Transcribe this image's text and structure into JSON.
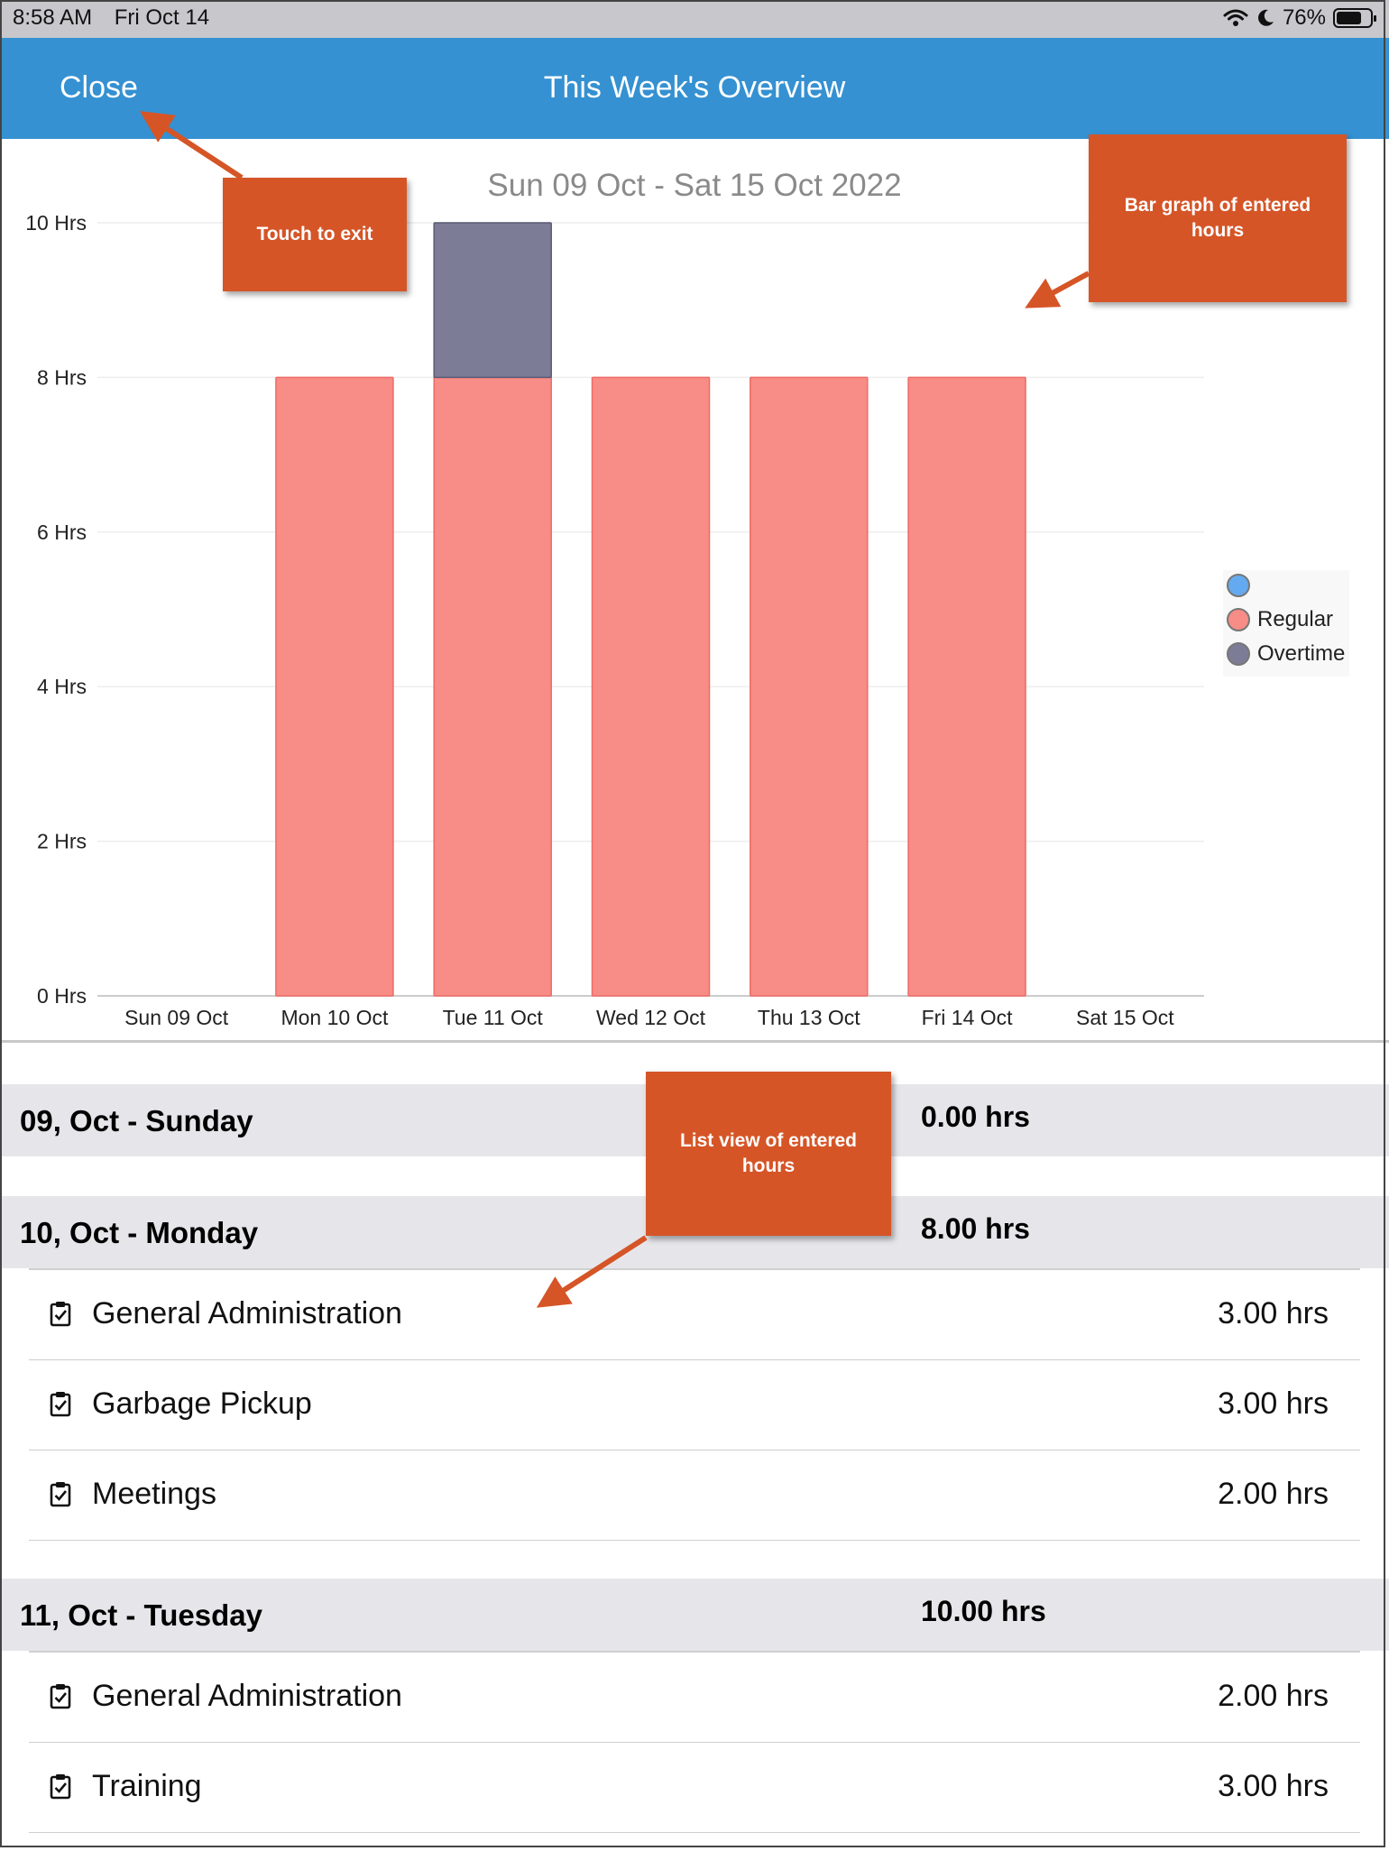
{
  "status_bar": {
    "time": "8:58 AM",
    "date": "Fri Oct 14",
    "battery": "76%",
    "battery_level": 0.76
  },
  "nav": {
    "close_label": "Close",
    "title": "This Week's Overview"
  },
  "chart_data": {
    "type": "bar",
    "stacked": true,
    "title": "Sun 09 Oct - Sat 15 Oct 2022",
    "categories": [
      "Sun 09 Oct",
      "Mon 10 Oct",
      "Tue 11 Oct",
      "Wed 12 Oct",
      "Thu 13 Oct",
      "Fri 14 Oct",
      "Sat 15 Oct"
    ],
    "series": [
      {
        "name": "",
        "color": "#64aaf0",
        "values": [
          0,
          0,
          0,
          0,
          0,
          0,
          0
        ]
      },
      {
        "name": "Regular",
        "color": "#f88c86",
        "values": [
          0,
          8,
          8,
          8,
          8,
          8,
          0
        ]
      },
      {
        "name": "Overtime",
        "color": "#7c7c96",
        "values": [
          0,
          0,
          2,
          0,
          0,
          0,
          0
        ]
      }
    ],
    "yticks": [
      "0 Hrs",
      "2 Hrs",
      "4 Hrs",
      "6 Hrs",
      "8 Hrs",
      "10 Hrs"
    ],
    "ylim": [
      0,
      10
    ],
    "legend_position": "right"
  },
  "days": [
    {
      "label": "09, Oct - Sunday",
      "hours": "0.00 hrs",
      "entries": []
    },
    {
      "label": "10, Oct - Monday",
      "hours": "8.00 hrs",
      "entries": [
        {
          "label": "General Administration",
          "hours": "3.00 hrs"
        },
        {
          "label": "Garbage Pickup",
          "hours": "3.00 hrs"
        },
        {
          "label": "Meetings",
          "hours": "2.00 hrs"
        }
      ]
    },
    {
      "label": "11, Oct - Tuesday",
      "hours": "10.00 hrs",
      "entries": [
        {
          "label": "General Administration",
          "hours": "2.00 hrs"
        },
        {
          "label": "Training",
          "hours": "3.00 hrs"
        }
      ]
    }
  ],
  "callouts": {
    "close": "Touch to exit",
    "chart": "Bar graph of entered hours",
    "list": "List view of entered hours"
  }
}
